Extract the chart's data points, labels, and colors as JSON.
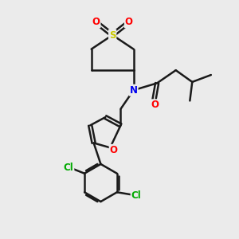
{
  "background_color": "#ebebeb",
  "bond_color": "#1a1a1a",
  "bond_width": 1.8,
  "atom_colors": {
    "S": "#c8c800",
    "O": "#ff0000",
    "N": "#0000ee",
    "Cl": "#00aa00",
    "C": "#1a1a1a"
  },
  "font_size": 8.5,
  "figsize": [
    3.0,
    3.0
  ],
  "dpi": 100,
  "xlim": [
    0,
    10
  ],
  "ylim": [
    0,
    10
  ]
}
